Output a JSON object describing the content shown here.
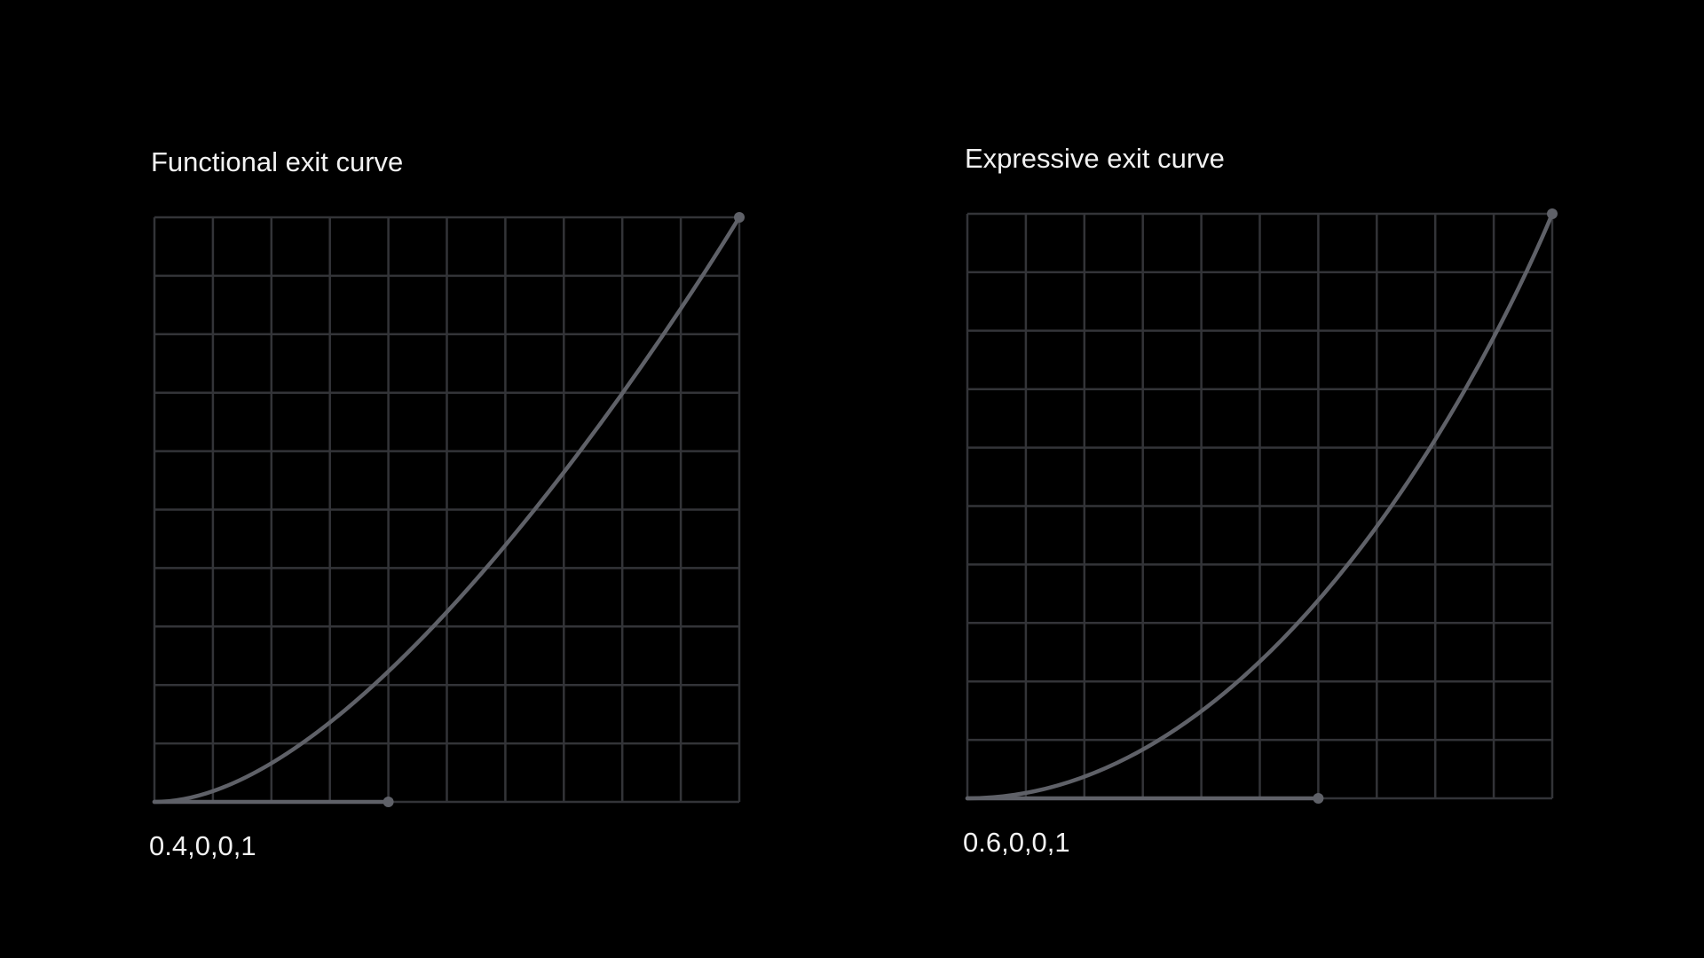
{
  "panels": [
    {
      "title": "Functional exit curve",
      "label": "0.4,0,0,1"
    },
    {
      "title": "Expressive exit curve",
      "label": "0.6,0,0,1"
    }
  ]
}
